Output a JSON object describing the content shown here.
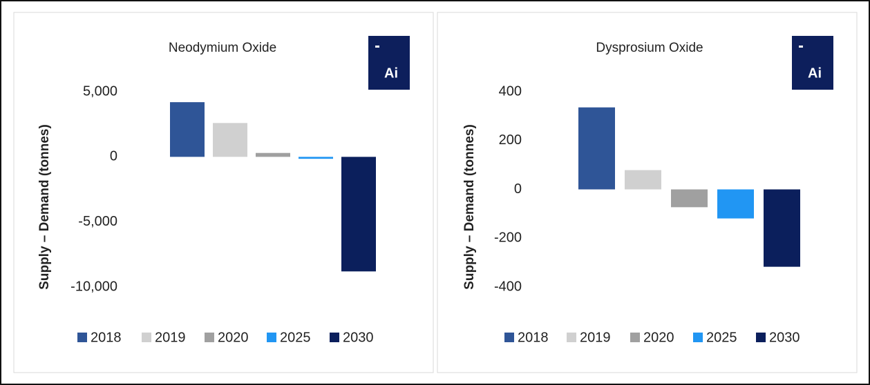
{
  "chart_data": [
    {
      "type": "bar",
      "title": "Neodymium Oxide",
      "badge": "Ai",
      "ylabel": "Supply – Demand (tonnes)",
      "categories": [
        "2018",
        "2019",
        "2020",
        "2025",
        "2030"
      ],
      "values": [
        4200,
        2600,
        300,
        -150,
        -8800
      ],
      "colors": [
        "#2f5597",
        "#d0d0d0",
        "#a0a0a0",
        "#2196f3",
        "#0b1f5c"
      ],
      "ylim": [
        -10000,
        5000
      ],
      "yticks": [
        {
          "value": 5000,
          "label": "5,000"
        },
        0,
        {
          "value": -5000,
          "label": "-5,000"
        },
        {
          "value": -10000,
          "label": "-10,000"
        }
      ],
      "grid": false
    },
    {
      "type": "bar",
      "title": "Dysprosium Oxide",
      "badge": "Ai",
      "ylabel": "Supply – Demand (tonnes)",
      "categories": [
        "2018",
        "2019",
        "2020",
        "2025",
        "2030"
      ],
      "values": [
        336,
        79,
        -73,
        -119,
        -317
      ],
      "colors": [
        "#2f5597",
        "#d0d0d0",
        "#a0a0a0",
        "#2196f3",
        "#0b1f5c"
      ],
      "ylim": [
        -400,
        400
      ],
      "yticks": [
        400,
        200,
        0,
        -200,
        -400
      ],
      "grid": false
    }
  ]
}
